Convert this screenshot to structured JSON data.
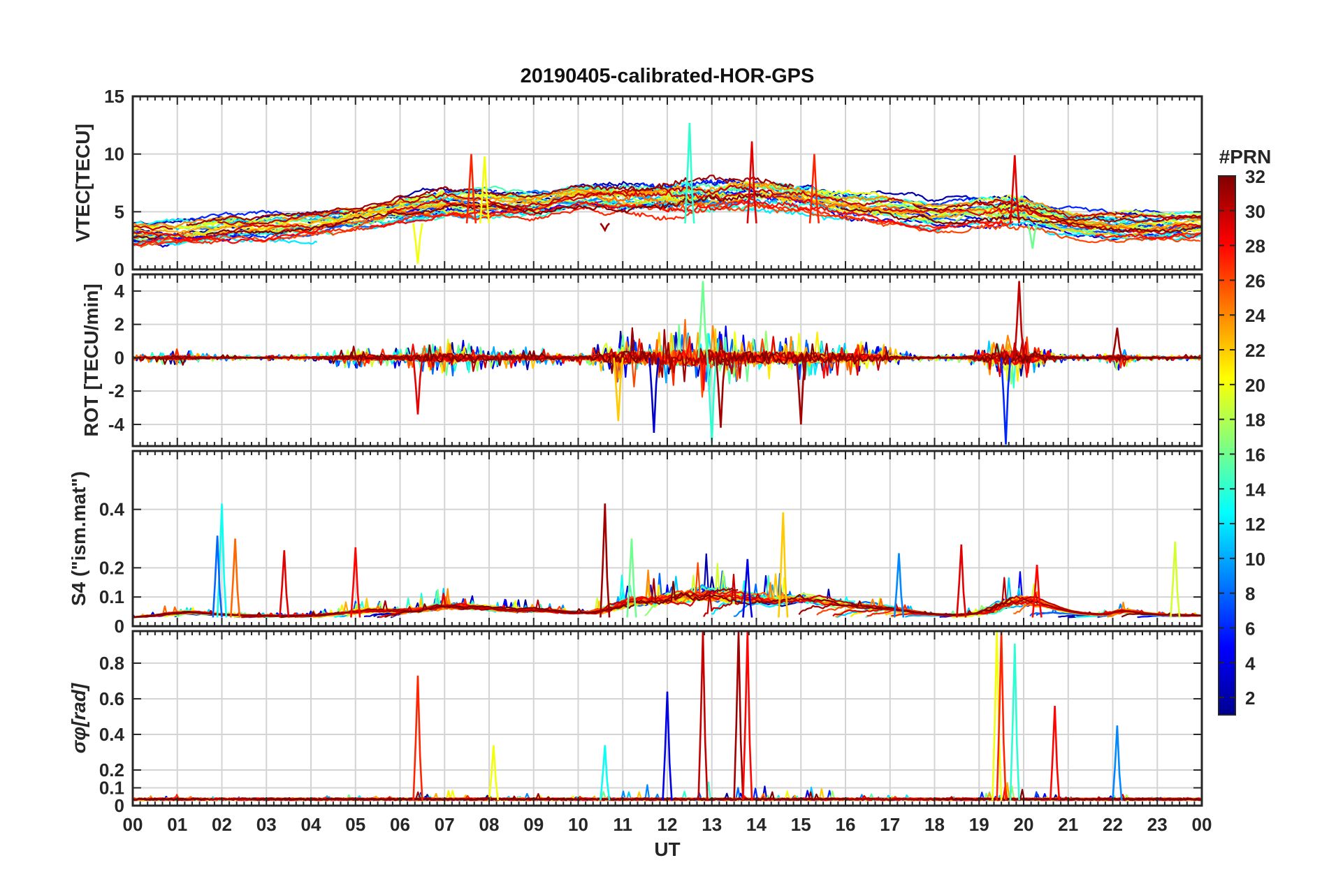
{
  "chart_data": {
    "type": "line",
    "title": "20190405-calibrated-HOR-GPS",
    "xlabel": "UT",
    "x_tick_labels": [
      "00",
      "01",
      "02",
      "03",
      "04",
      "05",
      "06",
      "07",
      "08",
      "09",
      "10",
      "11",
      "12",
      "13",
      "14",
      "15",
      "16",
      "17",
      "18",
      "19",
      "20",
      "21",
      "22",
      "23",
      "00"
    ],
    "xlim": [
      0,
      24
    ],
    "grid": true,
    "colorbar": {
      "label": "#PRN",
      "range": [
        1,
        32
      ],
      "ticks": [
        2,
        4,
        6,
        8,
        10,
        12,
        14,
        16,
        18,
        20,
        22,
        24,
        26,
        28,
        30,
        32
      ],
      "colormap": "jet",
      "colors": [
        "#00008f",
        "#0000ff",
        "#0080ff",
        "#00ffff",
        "#80ff80",
        "#ffff00",
        "#ff8000",
        "#ff0000",
        "#800000"
      ]
    },
    "panels": [
      {
        "ylabel": "VTEC[TECU]",
        "ylim": [
          0,
          15
        ],
        "y_ticks": [
          0,
          5,
          10,
          15
        ],
        "y_tick_labels": [
          "0",
          "5",
          "10",
          "15"
        ],
        "baseline": 4,
        "curve": [
          [
            0,
            3
          ],
          [
            1,
            3
          ],
          [
            2,
            3.4
          ],
          [
            3,
            3.5
          ],
          [
            4,
            3.8
          ],
          [
            5,
            4.3
          ],
          [
            6,
            5.2
          ],
          [
            7,
            5.8
          ],
          [
            8,
            5.6
          ],
          [
            9,
            5.6
          ],
          [
            10,
            6.4
          ],
          [
            11,
            6.2
          ],
          [
            12,
            6.2
          ],
          [
            13,
            6.4
          ],
          [
            14,
            6.6
          ],
          [
            15,
            6.2
          ],
          [
            16,
            5.6
          ],
          [
            17,
            5.1
          ],
          [
            18,
            4.6
          ],
          [
            19,
            4.9
          ],
          [
            20,
            5
          ],
          [
            21,
            4
          ],
          [
            22,
            3.5
          ],
          [
            23,
            3.7
          ],
          [
            24,
            3.8
          ]
        ],
        "highlights": [
          {
            "t": 7.6,
            "value": 10.0,
            "prn": 27
          },
          {
            "t": 7.9,
            "value": 9.8,
            "prn": 20
          },
          {
            "t": 6.4,
            "value": 0.5,
            "prn": 20
          },
          {
            "t": 12.5,
            "value": 12.7,
            "prn": 14
          },
          {
            "t": 13.9,
            "value": 11.1,
            "prn": 29
          },
          {
            "t": 15.3,
            "value": 10.0,
            "prn": 27
          },
          {
            "t": 19.8,
            "value": 9.9,
            "prn": 29
          },
          {
            "t": 20.2,
            "value": 1.8,
            "prn": 16
          },
          {
            "t": 10.6,
            "value": 3.4,
            "prn": 31
          }
        ]
      },
      {
        "ylabel": "ROT [TECU/min]",
        "ylim": [
          -5.3,
          5
        ],
        "y_ticks": [
          -4,
          -2,
          0,
          2,
          4
        ],
        "y_tick_labels": [
          "-4",
          "-2",
          "0",
          "2",
          "4"
        ],
        "baseline": 0,
        "highlights": [
          {
            "t": 11.7,
            "value": -4.5,
            "prn": 3
          },
          {
            "t": 12.8,
            "value": 4.6,
            "prn": 16
          },
          {
            "t": 13.0,
            "value": -5.1,
            "prn": 14
          },
          {
            "t": 13.2,
            "value": -4.2,
            "prn": 31
          },
          {
            "t": 19.6,
            "value": -5.2,
            "prn": 6
          },
          {
            "t": 19.9,
            "value": 4.6,
            "prn": 30
          },
          {
            "t": 6.4,
            "value": -3.4,
            "prn": 29
          },
          {
            "t": 10.9,
            "value": -3.8,
            "prn": 22
          },
          {
            "t": 15.0,
            "value": -4.0,
            "prn": 31
          },
          {
            "t": 22.1,
            "value": 1.8,
            "prn": 31
          }
        ]
      },
      {
        "ylabel": "S4 (\"ism.mat\")",
        "ylim": [
          0,
          0.6
        ],
        "y_ticks": [
          0,
          0.1,
          0.2,
          0.4
        ],
        "y_tick_labels": [
          "0",
          "0.1",
          "0.2",
          "0.4"
        ],
        "baseline": 0.03,
        "highlights": [
          {
            "t": 2.0,
            "value": 0.42,
            "prn": 13
          },
          {
            "t": 1.9,
            "value": 0.31,
            "prn": 8
          },
          {
            "t": 2.3,
            "value": 0.3,
            "prn": 25
          },
          {
            "t": 3.4,
            "value": 0.26,
            "prn": 29
          },
          {
            "t": 5.0,
            "value": 0.27,
            "prn": 28
          },
          {
            "t": 10.6,
            "value": 0.42,
            "prn": 31
          },
          {
            "t": 11.2,
            "value": 0.3,
            "prn": 16
          },
          {
            "t": 14.6,
            "value": 0.39,
            "prn": 22
          },
          {
            "t": 13.8,
            "value": 0.23,
            "prn": 4
          },
          {
            "t": 17.2,
            "value": 0.25,
            "prn": 9
          },
          {
            "t": 18.6,
            "value": 0.28,
            "prn": 29
          },
          {
            "t": 20.3,
            "value": 0.21,
            "prn": 28
          },
          {
            "t": 23.4,
            "value": 0.29,
            "prn": 19
          }
        ]
      },
      {
        "ylabel": "σφ[rad]",
        "ylim": [
          0,
          0.98
        ],
        "y_ticks": [
          0,
          0.1,
          0.2,
          0.4,
          0.6,
          0.8
        ],
        "y_tick_labels": [
          "0",
          "0.1",
          "0.2",
          "0.4",
          "0.6",
          "0.8"
        ],
        "baseline": 0.03,
        "highlights": [
          {
            "t": 6.4,
            "value": 0.73,
            "prn": 27
          },
          {
            "t": 12.0,
            "value": 0.64,
            "prn": 4
          },
          {
            "t": 12.8,
            "value": 0.98,
            "prn": 30
          },
          {
            "t": 13.6,
            "value": 0.98,
            "prn": 31
          },
          {
            "t": 13.8,
            "value": 0.98,
            "prn": 28
          },
          {
            "t": 19.4,
            "value": 0.98,
            "prn": 20
          },
          {
            "t": 19.5,
            "value": 0.98,
            "prn": 27
          },
          {
            "t": 19.8,
            "value": 0.91,
            "prn": 14
          },
          {
            "t": 20.7,
            "value": 0.56,
            "prn": 28
          },
          {
            "t": 22.1,
            "value": 0.45,
            "prn": 9
          },
          {
            "t": 8.1,
            "value": 0.34,
            "prn": 20
          },
          {
            "t": 10.6,
            "value": 0.34,
            "prn": 13
          }
        ]
      }
    ]
  }
}
